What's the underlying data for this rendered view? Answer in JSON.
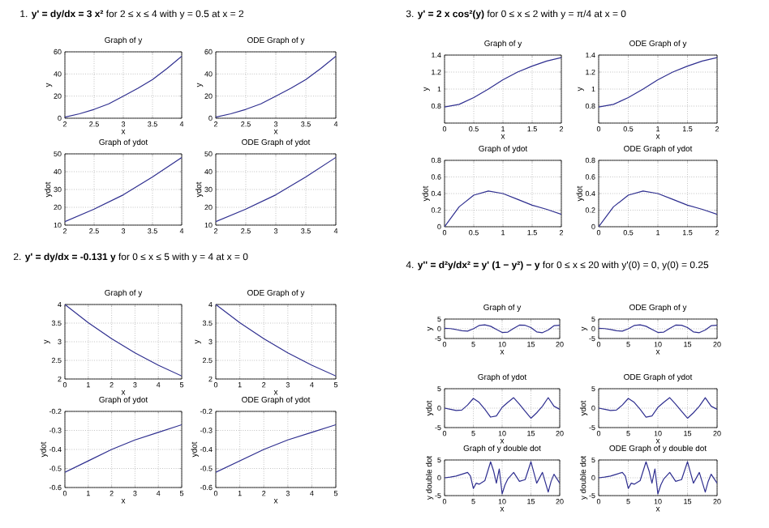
{
  "chart_data": [
    {
      "type": "line",
      "title": "Graph of y",
      "xlabel": "x",
      "ylabel": "y",
      "annotations": [
        "1.  **y' = dy/dx = 3 x²** for 2 ≤ x ≤ 4 with y = 0.5 at x = 2"
      ],
      "x": [
        2,
        2.25,
        2.5,
        2.75,
        3,
        3.25,
        3.5,
        3.75,
        4
      ],
      "series": [
        {
          "color": "#2e2e8f",
          "values": [
            1,
            4,
            8,
            13,
            20,
            27,
            35,
            45,
            56
          ]
        }
      ],
      "xlim": [
        2,
        4
      ],
      "ylim": [
        0,
        60
      ],
      "xticks": [
        2,
        2.5,
        3,
        3.5,
        4
      ],
      "yticks": [
        0,
        20,
        40,
        60
      ],
      "grid": true
    },
    {
      "type": "line",
      "title": "ODE Graph of y",
      "xlabel": "x",
      "ylabel": "y",
      "x": [
        2,
        2.25,
        2.5,
        2.75,
        3,
        3.25,
        3.5,
        3.75,
        4
      ],
      "series": [
        {
          "color": "#2e2e8f",
          "values": [
            1,
            4,
            8,
            13,
            20,
            27,
            35,
            45,
            56
          ]
        }
      ],
      "xlim": [
        2,
        4
      ],
      "ylim": [
        0,
        60
      ],
      "xticks": [
        2,
        2.5,
        3,
        3.5,
        4
      ],
      "yticks": [
        0,
        20,
        40,
        60
      ],
      "grid": true
    },
    {
      "type": "line",
      "title": "Graph of ydot",
      "ylabel": "ydot",
      "x": [
        2,
        2.5,
        3,
        3.5,
        4
      ],
      "series": [
        {
          "color": "#2e2e8f",
          "values": [
            12,
            19,
            27,
            37,
            48
          ]
        }
      ],
      "xlim": [
        2,
        4
      ],
      "ylim": [
        10,
        50
      ],
      "xticks": [
        2,
        2.5,
        3,
        3.5,
        4
      ],
      "yticks": [
        10,
        20,
        30,
        40,
        50
      ],
      "grid": true
    },
    {
      "type": "line",
      "title": "ODE Graph of ydot",
      "ylabel": "ydot",
      "x": [
        2,
        2.5,
        3,
        3.5,
        4
      ],
      "series": [
        {
          "color": "#2e2e8f",
          "values": [
            12,
            19,
            27,
            37,
            48
          ]
        }
      ],
      "xlim": [
        2,
        4
      ],
      "ylim": [
        10,
        50
      ],
      "xticks": [
        2,
        2.5,
        3,
        3.5,
        4
      ],
      "yticks": [
        10,
        20,
        30,
        40,
        50
      ],
      "grid": true
    },
    {
      "type": "line",
      "title": "Graph of y",
      "xlabel": "x",
      "ylabel": "y",
      "annotations": [
        "3.  **y' = 2 x cos²(y)** for 0 ≤ x ≤ 2 with y = π/4 at x = 0"
      ],
      "x": [
        0,
        0.25,
        0.5,
        0.75,
        1,
        1.25,
        1.5,
        1.75,
        2
      ],
      "series": [
        {
          "color": "#2e2e8f",
          "values": [
            0.79,
            0.82,
            0.9,
            1.0,
            1.11,
            1.2,
            1.27,
            1.33,
            1.37
          ]
        }
      ],
      "xlim": [
        0,
        2
      ],
      "ylim": [
        0.6,
        1.4
      ],
      "xticks": [
        0,
        0.5,
        1,
        1.5,
        2
      ],
      "yticks": [
        {
          "value": 0.6,
          "label": null
        },
        0.8,
        1,
        1.2,
        1.4
      ],
      "grid": true
    },
    {
      "type": "line",
      "title": "ODE Graph of y",
      "xlabel": "x",
      "ylabel": "y",
      "x": [
        0,
        0.25,
        0.5,
        0.75,
        1,
        1.25,
        1.5,
        1.75,
        2
      ],
      "series": [
        {
          "color": "#2e2e8f",
          "values": [
            0.79,
            0.82,
            0.9,
            1.0,
            1.11,
            1.2,
            1.27,
            1.33,
            1.37
          ]
        }
      ],
      "xlim": [
        0,
        2
      ],
      "ylim": [
        0.6,
        1.4
      ],
      "xticks": [
        0,
        0.5,
        1,
        1.5,
        2
      ],
      "yticks": [
        {
          "value": 0.6,
          "label": null
        },
        0.8,
        1,
        1.2,
        1.4
      ],
      "grid": true
    },
    {
      "type": "line",
      "title": "Graph of ydot",
      "ylabel": "ydot",
      "x": [
        0,
        0.25,
        0.5,
        0.75,
        1,
        1.25,
        1.5,
        1.75,
        2
      ],
      "series": [
        {
          "color": "#2e2e8f",
          "values": [
            0,
            0.24,
            0.38,
            0.43,
            0.4,
            0.33,
            0.26,
            0.21,
            0.15
          ]
        }
      ],
      "xlim": [
        0,
        2
      ],
      "ylim": [
        0,
        0.8
      ],
      "xticks": [
        0,
        0.5,
        1,
        1.5,
        2
      ],
      "yticks": [
        0,
        0.2,
        0.4,
        0.6,
        0.8
      ],
      "grid": true
    },
    {
      "type": "line",
      "title": "ODE Graph of ydot",
      "ylabel": "ydot",
      "x": [
        0,
        0.25,
        0.5,
        0.75,
        1,
        1.25,
        1.5,
        1.75,
        2
      ],
      "series": [
        {
          "color": "#2e2e8f",
          "values": [
            0,
            0.24,
            0.38,
            0.43,
            0.4,
            0.33,
            0.26,
            0.21,
            0.15
          ]
        }
      ],
      "xlim": [
        0,
        2
      ],
      "ylim": [
        0,
        0.8
      ],
      "xticks": [
        0,
        0.5,
        1,
        1.5,
        2
      ],
      "yticks": [
        0,
        0.2,
        0.4,
        0.6,
        0.8
      ],
      "grid": true
    },
    {
      "type": "line",
      "title": "Graph of y",
      "xlabel": "x",
      "ylabel": "y",
      "annotations": [
        "2.  **y' = dy/dx = -0.131 y** for 0 ≤ x ≤ 5 with y = 4 at x = 0"
      ],
      "x": [
        0,
        1,
        2,
        3,
        4,
        5
      ],
      "series": [
        {
          "color": "#2e2e8f",
          "values": [
            4,
            3.51,
            3.08,
            2.7,
            2.37,
            2.08
          ]
        }
      ],
      "xlim": [
        0,
        5
      ],
      "ylim": [
        2,
        4
      ],
      "xticks": [
        0,
        1,
        2,
        3,
        4,
        5
      ],
      "yticks": [
        2,
        2.5,
        3,
        3.5,
        4
      ],
      "grid": true
    },
    {
      "type": "line",
      "title": "ODE Graph of y",
      "xlabel": "x",
      "ylabel": "y",
      "x": [
        0,
        1,
        2,
        3,
        4,
        5
      ],
      "series": [
        {
          "color": "#2e2e8f",
          "values": [
            4,
            3.51,
            3.08,
            2.7,
            2.37,
            2.08
          ]
        }
      ],
      "xlim": [
        0,
        5
      ],
      "ylim": [
        2,
        4
      ],
      "xticks": [
        0,
        1,
        2,
        3,
        4,
        5
      ],
      "yticks": [
        2,
        2.5,
        3,
        3.5,
        4
      ],
      "grid": true
    },
    {
      "type": "line",
      "title": "Graph of ydot",
      "xlabel": "x",
      "ylabel": "ydot",
      "x": [
        0,
        1,
        2,
        3,
        4,
        5
      ],
      "series": [
        {
          "color": "#2e2e8f",
          "values": [
            -0.52,
            -0.46,
            -0.4,
            -0.35,
            -0.31,
            -0.27
          ]
        }
      ],
      "xlim": [
        0,
        5
      ],
      "ylim": [
        -0.6,
        -0.2
      ],
      "xticks": [
        0,
        1,
        2,
        3,
        4,
        5
      ],
      "yticks": [
        -0.6,
        -0.5,
        -0.4,
        -0.3,
        -0.2
      ],
      "grid": true
    },
    {
      "type": "line",
      "title": "ODE Graph of ydot",
      "xlabel": "x",
      "ylabel": "ydot",
      "x": [
        0,
        1,
        2,
        3,
        4,
        5
      ],
      "series": [
        {
          "color": "#2e2e8f",
          "values": [
            -0.52,
            -0.46,
            -0.4,
            -0.35,
            -0.31,
            -0.27
          ]
        }
      ],
      "xlim": [
        0,
        5
      ],
      "ylim": [
        -0.6,
        -0.2
      ],
      "xticks": [
        0,
        1,
        2,
        3,
        4,
        5
      ],
      "yticks": [
        -0.6,
        -0.5,
        -0.4,
        -0.3,
        -0.2
      ],
      "grid": true
    },
    {
      "type": "line",
      "title": "Graph of y",
      "xlabel": "x",
      "ylabel": "y",
      "annotations": [
        "4.  **y'' = d²y/dx² = y' (1 − y²) − y** for 0 ≤ x ≤ 20 with y'(0) = 0, y(0) = 0.25"
      ],
      "x": [
        0,
        1,
        2,
        3,
        4,
        5,
        6,
        7,
        8,
        9,
        10,
        11,
        12,
        13,
        14,
        15,
        16,
        17,
        18,
        19,
        20
      ],
      "series": [
        {
          "color": "#2e2e8f",
          "values": [
            0.3,
            0.1,
            -0.4,
            -1,
            -1.2,
            0,
            1.7,
            2,
            1.3,
            -0.3,
            -1.9,
            -1.7,
            0.2,
            1.9,
            1.8,
            0.6,
            -1.6,
            -2,
            -0.6,
            1.6,
            1.8
          ]
        }
      ],
      "xlim": [
        0,
        20
      ],
      "ylim": [
        -5,
        5
      ],
      "xticks": [
        0,
        5,
        10,
        15,
        20
      ],
      "yticks": [
        -5,
        0,
        5
      ],
      "grid": true
    },
    {
      "type": "line",
      "title": "ODE Graph of y",
      "xlabel": "x",
      "ylabel": "y",
      "x": [
        0,
        1,
        2,
        3,
        4,
        5,
        6,
        7,
        8,
        9,
        10,
        11,
        12,
        13,
        14,
        15,
        16,
        17,
        18,
        19,
        20
      ],
      "series": [
        {
          "color": "#2e2e8f",
          "values": [
            0.3,
            0.1,
            -0.4,
            -1,
            -1.2,
            0,
            1.7,
            2,
            1.3,
            -0.3,
            -1.9,
            -1.7,
            0.2,
            1.9,
            1.8,
            0.6,
            -1.6,
            -2,
            -0.6,
            1.6,
            1.8
          ]
        }
      ],
      "xlim": [
        0,
        20
      ],
      "ylim": [
        -5,
        5
      ],
      "xticks": [
        0,
        5,
        10,
        15,
        20
      ],
      "yticks": [
        -5,
        0,
        5
      ],
      "grid": true
    },
    {
      "type": "line",
      "title": "Graph of ydot",
      "xlabel": "x",
      "ylabel": "ydot",
      "x": [
        0,
        1,
        2,
        3,
        4,
        5,
        6,
        7,
        8,
        9,
        10,
        11,
        12,
        13,
        14,
        15,
        16,
        17,
        18,
        19,
        20
      ],
      "series": [
        {
          "color": "#2e2e8f",
          "values": [
            0,
            -0.3,
            -0.6,
            -0.5,
            0.8,
            2.5,
            1.5,
            -0.3,
            -2.3,
            -2,
            0.2,
            1.5,
            2.7,
            1,
            -0.8,
            -2.6,
            -1.2,
            0.5,
            2.7,
            0.5,
            -0.3
          ]
        }
      ],
      "xlim": [
        0,
        20
      ],
      "ylim": [
        -5,
        5
      ],
      "xticks": [
        0,
        5,
        10,
        15,
        20
      ],
      "yticks": [
        -5,
        0,
        5
      ],
      "grid": true
    },
    {
      "type": "line",
      "title": "ODE Graph of ydot",
      "xlabel": "x",
      "ylabel": "ydot",
      "x": [
        0,
        1,
        2,
        3,
        4,
        5,
        6,
        7,
        8,
        9,
        10,
        11,
        12,
        13,
        14,
        15,
        16,
        17,
        18,
        19,
        20
      ],
      "series": [
        {
          "color": "#2e2e8f",
          "values": [
            0,
            -0.3,
            -0.6,
            -0.5,
            0.8,
            2.5,
            1.5,
            -0.3,
            -2.3,
            -2,
            0.2,
            1.5,
            2.7,
            1,
            -0.8,
            -2.6,
            -1.2,
            0.5,
            2.7,
            0.5,
            -0.3
          ]
        }
      ],
      "xlim": [
        0,
        20
      ],
      "ylim": [
        -5,
        5
      ],
      "xticks": [
        0,
        5,
        10,
        15,
        20
      ],
      "yticks": [
        -5,
        0,
        5
      ],
      "grid": true
    },
    {
      "type": "line",
      "title": "Graph of y double dot",
      "xlabel": "x",
      "ylabel": "y double dot",
      "x": [
        0,
        1,
        2,
        3,
        4,
        4.5,
        5,
        5.5,
        6,
        7,
        8,
        8.5,
        9,
        9.5,
        10,
        10.5,
        11,
        12,
        13,
        14,
        15,
        15.5,
        16,
        17,
        18,
        18.5,
        19,
        20
      ],
      "series": [
        {
          "color": "#2e2e8f",
          "values": [
            0,
            0.2,
            0.5,
            1,
            1.5,
            0.5,
            -3,
            -1.5,
            -1.8,
            -0.8,
            4.5,
            2,
            -1.5,
            2.5,
            -4.5,
            -2,
            -0.3,
            1.5,
            -1,
            -0.5,
            4.5,
            1.5,
            -1.5,
            1.5,
            -4,
            -1,
            1,
            -1.5
          ]
        }
      ],
      "xlim": [
        0,
        20
      ],
      "ylim": [
        -5,
        5
      ],
      "xticks": [
        0,
        5,
        10,
        15,
        20
      ],
      "yticks": [
        -5,
        0,
        5
      ],
      "grid": true
    },
    {
      "type": "line",
      "title": "ODE Graph of y double dot",
      "xlabel": "x",
      "ylabel": "y double dot",
      "x": [
        0,
        1,
        2,
        3,
        4,
        4.5,
        5,
        5.5,
        6,
        7,
        8,
        8.5,
        9,
        9.5,
        10,
        10.5,
        11,
        12,
        13,
        14,
        15,
        15.5,
        16,
        17,
        18,
        18.5,
        19,
        20
      ],
      "series": [
        {
          "color": "#2e2e8f",
          "values": [
            0,
            0.2,
            0.5,
            1,
            1.5,
            0.5,
            -3,
            -1.5,
            -1.8,
            -0.8,
            4.5,
            2,
            -1.5,
            2.5,
            -4.5,
            -2,
            -0.3,
            1.5,
            -1,
            -0.5,
            4.5,
            1.5,
            -1.5,
            1.5,
            -4,
            -1,
            1,
            -1.5
          ]
        }
      ],
      "xlim": [
        0,
        20
      ],
      "ylim": [
        -5,
        5
      ],
      "xticks": [
        0,
        5,
        10,
        15,
        20
      ],
      "yticks": [
        -5,
        0,
        5
      ],
      "grid": true
    }
  ]
}
